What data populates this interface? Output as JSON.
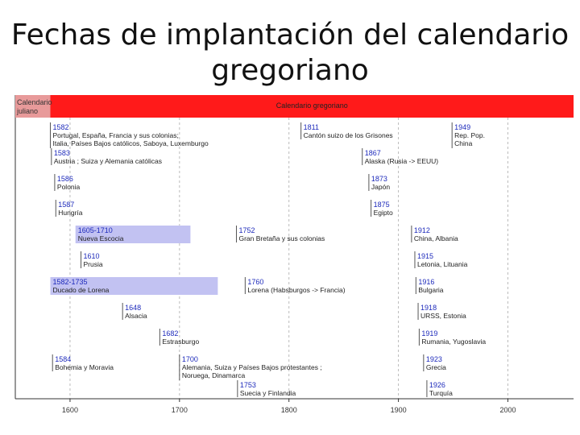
{
  "slide": {
    "title_line1": "Fechas de implantación del calendario",
    "title_line2": "gregoriano"
  },
  "colors": {
    "gregorian_band": "#ff1a1a",
    "julian_band": "#e89a9a",
    "range_bar": "#c2c2f2",
    "year_text": "#1e2bbb",
    "label_text": "#222222",
    "marker_line": "#555555"
  },
  "timeline": {
    "axis_start_year": 1550,
    "axis_end_year": 2060,
    "axis_ticks": [
      1600,
      1700,
      1800,
      1900,
      2000
    ],
    "band_julian_label_lines": [
      "Calendario",
      "juliano"
    ],
    "band_gregorian_label": "Calendario gregoriano",
    "events": [
      {
        "year": 1582,
        "year_label": "1582",
        "lines": [
          "Portugal, España, Francia y sus colonias;",
          "Italia, Países Bajos católicos, Saboya, Luxemburgo"
        ],
        "row": 0
      },
      {
        "year": 1811,
        "year_label": "1811",
        "lines": [
          "Cantón suizo de los Grisones"
        ],
        "row": 0
      },
      {
        "year": 1949,
        "year_label": "1949",
        "lines": [
          "Rep. Pop.",
          "China"
        ],
        "row": 0
      },
      {
        "year": 1583,
        "year_label": "1583",
        "lines": [
          "Austria ; Suiza y Alemania católicas"
        ],
        "row": 1
      },
      {
        "year": 1867,
        "year_label": "1867",
        "lines": [
          "Alaska (Rusia -> EEUU)"
        ],
        "row": 1
      },
      {
        "year": 1586,
        "year_label": "1586",
        "lines": [
          "Polonia"
        ],
        "row": 2
      },
      {
        "year": 1873,
        "year_label": "1873",
        "lines": [
          "Japón"
        ],
        "row": 2
      },
      {
        "year": 1587,
        "year_label": "1587",
        "lines": [
          "Hungría"
        ],
        "row": 3
      },
      {
        "year": 1875,
        "year_label": "1875",
        "lines": [
          "Egipto"
        ],
        "row": 3
      },
      {
        "year": 1605,
        "end_year": 1710,
        "year_label": "1605-1710",
        "lines": [
          "Nueva Escocia"
        ],
        "row": 4
      },
      {
        "year": 1752,
        "year_label": "1752",
        "lines": [
          "Gran Bretaña y sus colonias"
        ],
        "row": 4
      },
      {
        "year": 1912,
        "year_label": "1912",
        "lines": [
          "China, Albania"
        ],
        "row": 4
      },
      {
        "year": 1610,
        "year_label": "1610",
        "lines": [
          "Prusia"
        ],
        "row": 5
      },
      {
        "year": 1915,
        "year_label": "1915",
        "lines": [
          "Letonia, Lituania"
        ],
        "row": 5
      },
      {
        "year": 1582,
        "end_year": 1735,
        "year_label": "1582-1735",
        "lines": [
          "Ducado de Lorena"
        ],
        "row": 6
      },
      {
        "year": 1760,
        "year_label": "1760",
        "lines": [
          "Lorena (Habsburgos -> Francia)"
        ],
        "row": 6
      },
      {
        "year": 1916,
        "year_label": "1916",
        "lines": [
          "Bulgaria"
        ],
        "row": 6
      },
      {
        "year": 1648,
        "year_label": "1648",
        "lines": [
          "Alsacia"
        ],
        "row": 7
      },
      {
        "year": 1918,
        "year_label": "1918",
        "lines": [
          "URSS, Estonia"
        ],
        "row": 7
      },
      {
        "year": 1682,
        "year_label": "1682",
        "lines": [
          "Estrasburgo"
        ],
        "row": 8
      },
      {
        "year": 1919,
        "year_label": "1919",
        "lines": [
          "Rumania, Yugoslavia"
        ],
        "row": 8
      },
      {
        "year": 1584,
        "year_label": "1584",
        "lines": [
          "Bohemia y Moravia"
        ],
        "row": 9
      },
      {
        "year": 1700,
        "year_label": "1700",
        "lines": [
          "Alemania, Suiza y Países Bajos protestantes ;",
          "Noruega, Dinamarca"
        ],
        "row": 9
      },
      {
        "year": 1923,
        "year_label": "1923",
        "lines": [
          "Grecia"
        ],
        "row": 9
      },
      {
        "year": 1753,
        "year_label": "1753",
        "lines": [
          "Suecia y Finlandia"
        ],
        "row": 10
      },
      {
        "year": 1926,
        "year_label": "1926",
        "lines": [
          "Turquía"
        ],
        "row": 10
      }
    ]
  }
}
